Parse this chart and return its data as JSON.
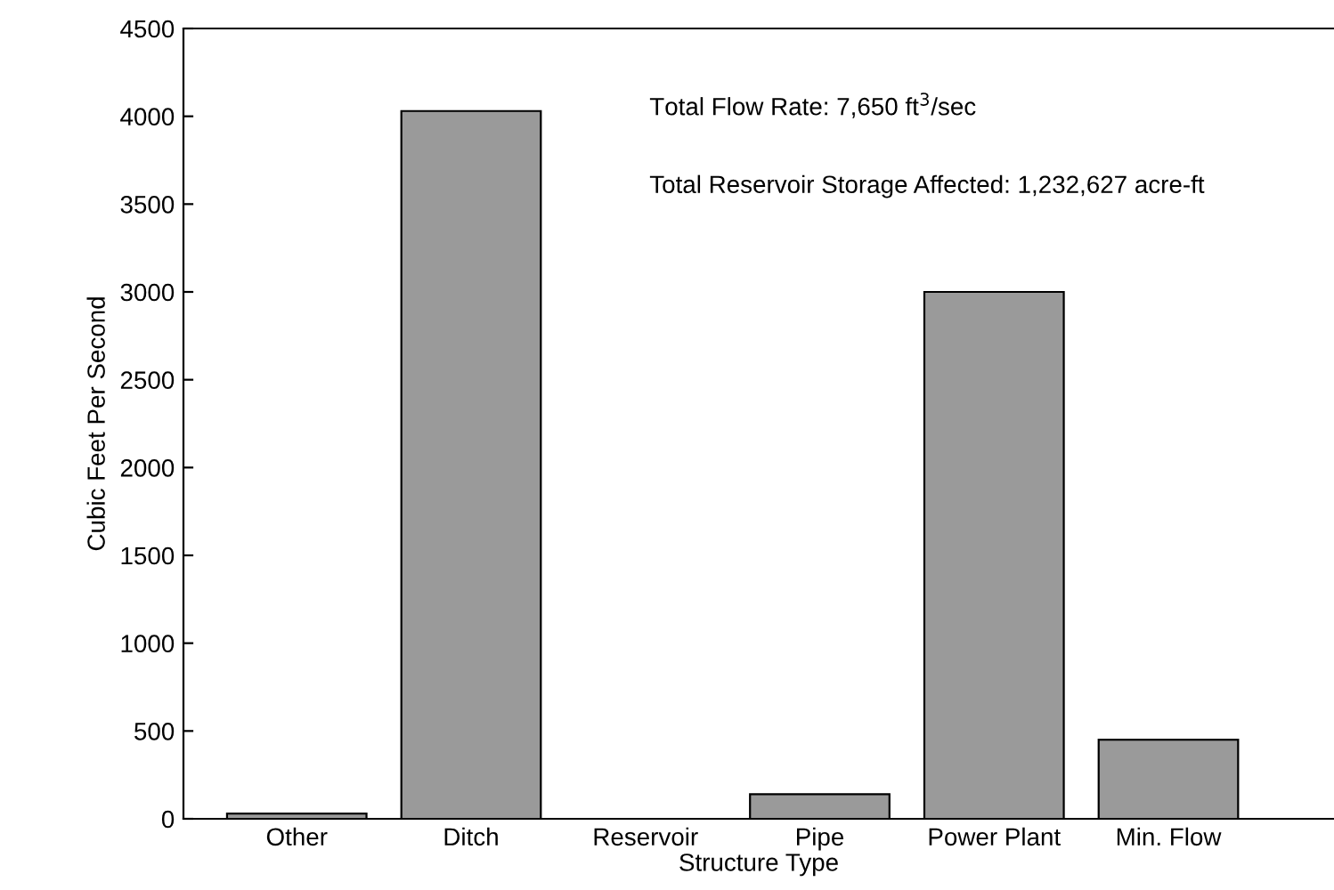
{
  "chart_data": {
    "type": "bar",
    "xlabel": "Structure Type",
    "ylabel": "Cubic Feet Per Second",
    "categories": [
      "Other",
      "Ditch",
      "Reservoir",
      "Pipe",
      "Power Plant",
      "Min. Flow"
    ],
    "values": [
      30,
      4030,
      null,
      140,
      3000,
      450
    ],
    "color": "#9a9a9a",
    "ylim": [
      0,
      4500
    ],
    "yticks": [
      0,
      500,
      1000,
      1500,
      2000,
      2500,
      3000,
      3500,
      4000,
      4500
    ],
    "grid": false,
    "annotations": [
      "Total Flow Rate: 7,650 ft$^{3}$/sec",
      "Total Reservoir Storage Affected: 1,232,627 acre-ft"
    ]
  }
}
